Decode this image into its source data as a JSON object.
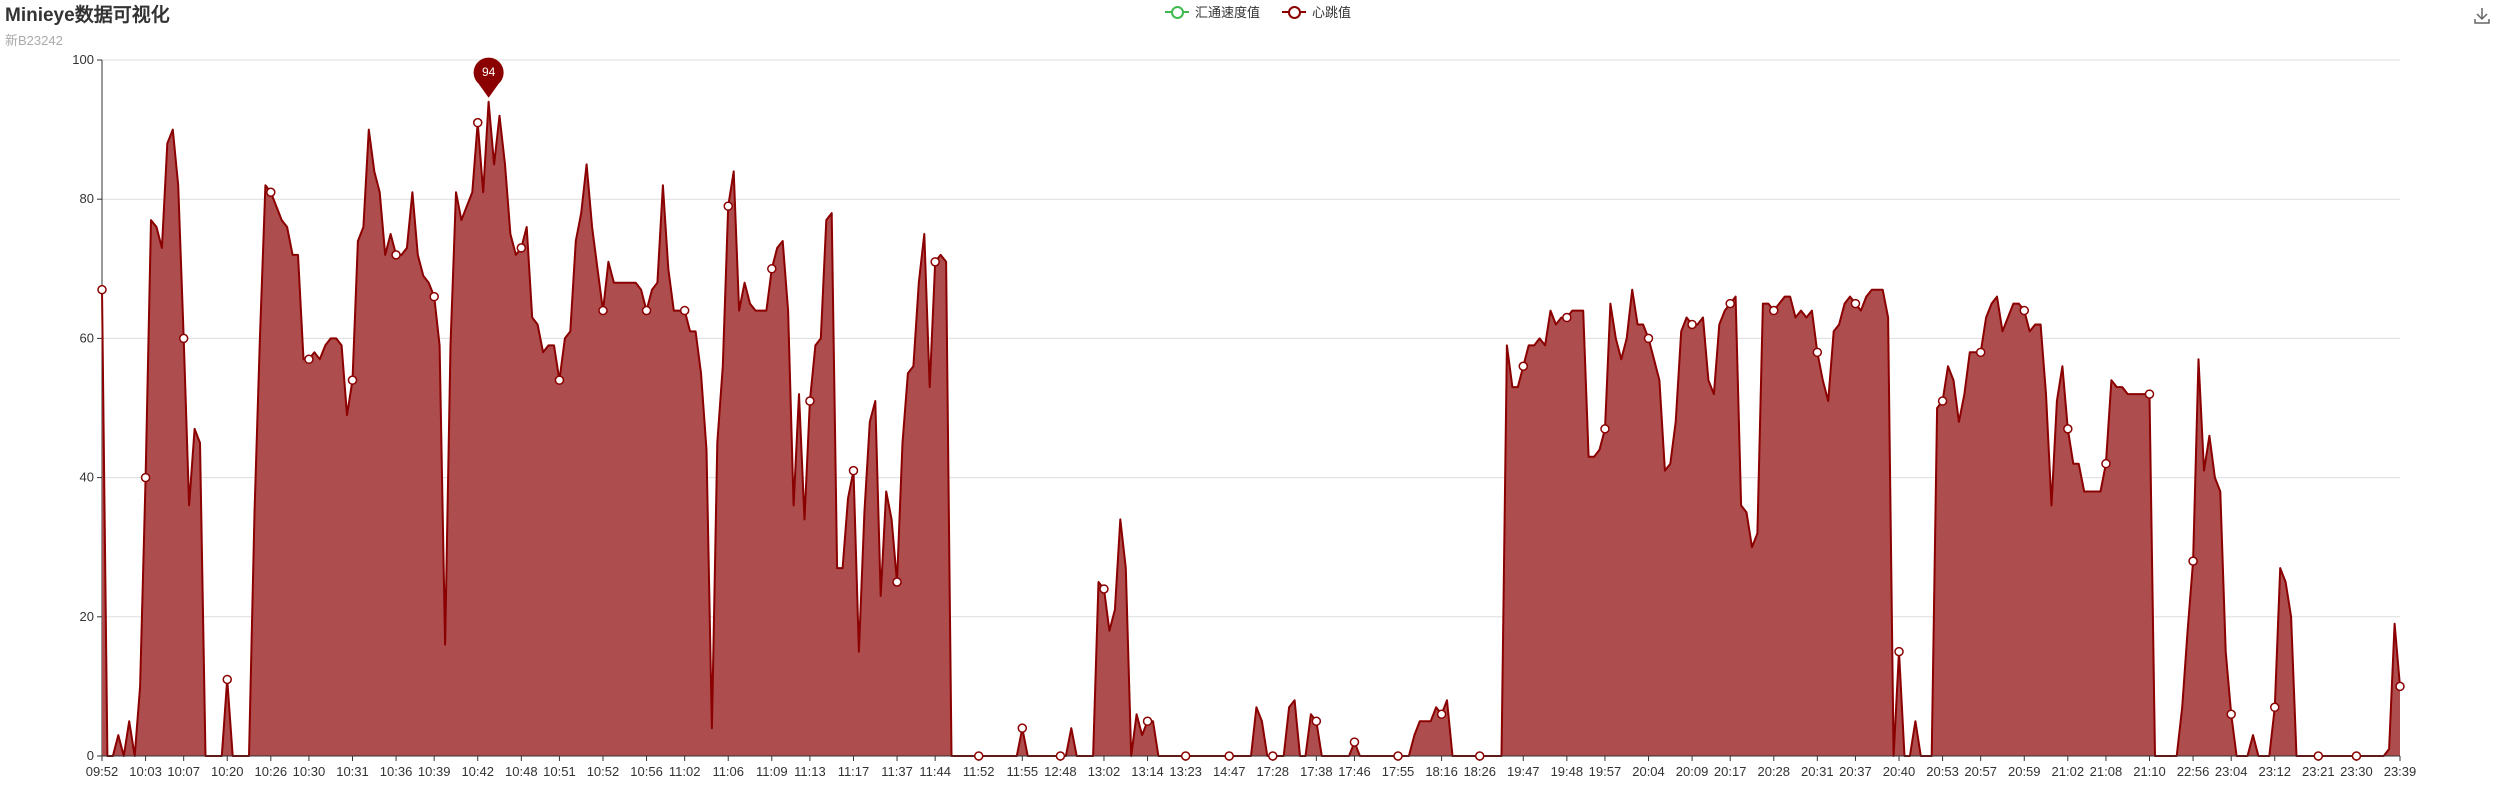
{
  "title": "Minieye数据可视化",
  "subtitle": "新B23242",
  "legend": [
    {
      "label": "汇通速度值",
      "color": "#3fb950"
    },
    {
      "label": "心跳值",
      "color": "#8b0000"
    }
  ],
  "toolbar": {
    "download_icon": "download-icon"
  },
  "chart_data": {
    "type": "area",
    "ylim": [
      0,
      100
    ],
    "yticks": [
      0,
      20,
      40,
      60,
      80,
      100
    ],
    "grid": true,
    "legend_position": "top-center",
    "xticks": [
      "09:52",
      "10:03",
      "10:07",
      "10:20",
      "10:26",
      "10:30",
      "10:31",
      "10:36",
      "10:39",
      "10:42",
      "10:48",
      "10:51",
      "10:52",
      "10:56",
      "11:02",
      "11:06",
      "11:09",
      "11:13",
      "11:17",
      "11:37",
      "11:44",
      "11:52",
      "11:55",
      "12:48",
      "13:02",
      "13:14",
      "13:23",
      "14:47",
      "17:28",
      "17:38",
      "17:46",
      "17:55",
      "18:16",
      "18:26",
      "19:47",
      "19:48",
      "19:57",
      "20:04",
      "20:09",
      "20:17",
      "20:28",
      "20:31",
      "20:37",
      "20:40",
      "20:53",
      "20:57",
      "20:59",
      "21:02",
      "21:08",
      "21:10",
      "22:56",
      "23:04",
      "23:12",
      "23:21",
      "23:30",
      "23:39"
    ],
    "series": [
      {
        "name": "心跳值",
        "color": "#8b0000",
        "fill": "#ad4d4d",
        "max_label": "94",
        "values": [
          67,
          0,
          0,
          3,
          0,
          5,
          0,
          10,
          40,
          77,
          76,
          73,
          88,
          90,
          82,
          60,
          36,
          47,
          45,
          0,
          0,
          0,
          0,
          11,
          0,
          0,
          0,
          0,
          35,
          60,
          82,
          81,
          79,
          77,
          76,
          72,
          72,
          57,
          57,
          58,
          57,
          59,
          60,
          60,
          59,
          49,
          54,
          74,
          76,
          90,
          84,
          81,
          72,
          75,
          72,
          72,
          73,
          81,
          72,
          69,
          68,
          66,
          59,
          16,
          59,
          81,
          77,
          79,
          81,
          91,
          81,
          94,
          85,
          92,
          85,
          75,
          72,
          73,
          76,
          63,
          62,
          58,
          59,
          59,
          54,
          60,
          61,
          74,
          78,
          85,
          76,
          70,
          64,
          71,
          68,
          68,
          68,
          68,
          68,
          67,
          64,
          67,
          68,
          82,
          70,
          64,
          64,
          64,
          61,
          61,
          55,
          44,
          4,
          45,
          56,
          79,
          84,
          64,
          68,
          65,
          64,
          64,
          64,
          70,
          73,
          74,
          64,
          36,
          52,
          34,
          51,
          59,
          60,
          77,
          78,
          27,
          27,
          37,
          41,
          15,
          35,
          48,
          51,
          23,
          38,
          34,
          25,
          45,
          55,
          56,
          68,
          75,
          53,
          71,
          72,
          71,
          0,
          0,
          0,
          0,
          0,
          0,
          0,
          0,
          0,
          0,
          0,
          0,
          0,
          4,
          0,
          0,
          0,
          0,
          0,
          0,
          0,
          0,
          4,
          0,
          0,
          0,
          0,
          25,
          24,
          18,
          21,
          34,
          27,
          0,
          6,
          3,
          5,
          5,
          0,
          0,
          0,
          0,
          0,
          0,
          0,
          0,
          0,
          0,
          0,
          0,
          0,
          0,
          0,
          0,
          0,
          0,
          7,
          5,
          0,
          0,
          0,
          0,
          7,
          8,
          0,
          0,
          6,
          5,
          0,
          0,
          0,
          0,
          0,
          0,
          2,
          0,
          0,
          0,
          0,
          0,
          0,
          0,
          0,
          0,
          0,
          3,
          5,
          5,
          5,
          7,
          6,
          8,
          0,
          0,
          0,
          0,
          0,
          0,
          0,
          0,
          0,
          0,
          59,
          53,
          53,
          56,
          59,
          59,
          60,
          59,
          64,
          62,
          63,
          63,
          64,
          64,
          64,
          43,
          43,
          44,
          47,
          65,
          60,
          57,
          60,
          67,
          62,
          62,
          60,
          57,
          54,
          41,
          42,
          48,
          61,
          63,
          62,
          62,
          63,
          54,
          52,
          62,
          64,
          65,
          66,
          36,
          35,
          30,
          32,
          65,
          65,
          64,
          65,
          66,
          66,
          63,
          64,
          63,
          64,
          58,
          54,
          51,
          61,
          62,
          65,
          66,
          65,
          64,
          66,
          67,
          67,
          67,
          63,
          0,
          15,
          0,
          0,
          5,
          0,
          0,
          0,
          50,
          51,
          56,
          54,
          48,
          52,
          58,
          58,
          58,
          63,
          65,
          66,
          61,
          63,
          65,
          65,
          64,
          61,
          62,
          62,
          52,
          36,
          51,
          56,
          47,
          42,
          42,
          38,
          38,
          38,
          38,
          42,
          54,
          53,
          53,
          52,
          52,
          52,
          52,
          52,
          0,
          0,
          0,
          0,
          0,
          7,
          18,
          28,
          57,
          41,
          46,
          40,
          38,
          15,
          6,
          0,
          0,
          0,
          3,
          0,
          0,
          0,
          7,
          27,
          25,
          20,
          0,
          0,
          0,
          0,
          0,
          0,
          0,
          0,
          0,
          0,
          0,
          0,
          0,
          0,
          0,
          0,
          0,
          1,
          19,
          10
        ]
      }
    ]
  }
}
